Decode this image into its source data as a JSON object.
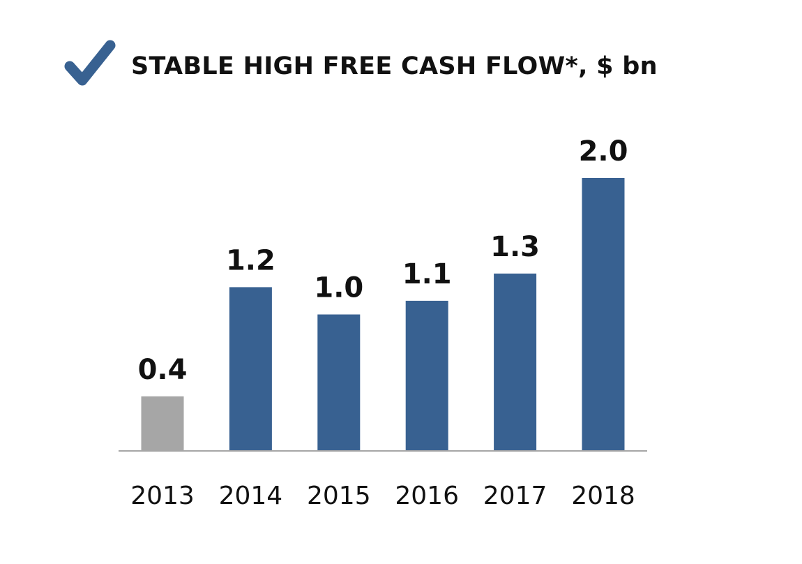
{
  "header": {
    "title": "STABLE HIGH FREE CASH FLOW*, $ bn",
    "icon": "checkmark-icon",
    "icon_color": "#386191"
  },
  "chart_data": {
    "type": "bar",
    "title": "STABLE HIGH FREE CASH FLOW*, $ bn",
    "categories": [
      "2013",
      "2014",
      "2015",
      "2016",
      "2017",
      "2018"
    ],
    "values": [
      0.4,
      1.2,
      1.0,
      1.1,
      1.3,
      2.0
    ],
    "value_labels": [
      "0.4",
      "1.2",
      "1.0",
      "1.1",
      "1.3",
      "2.0"
    ],
    "bar_colors": [
      "#a6a6a6",
      "#386191",
      "#386191",
      "#386191",
      "#386191",
      "#386191"
    ],
    "ylim": [
      0,
      2.0
    ],
    "grid": false,
    "legend": "none",
    "xlabel": "",
    "ylabel": ""
  }
}
